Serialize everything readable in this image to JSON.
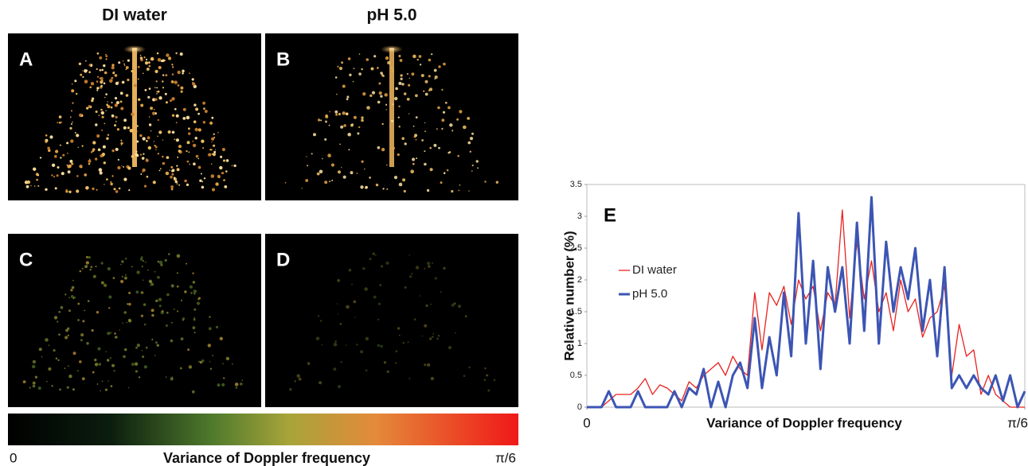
{
  "panels": {
    "headers": [
      "DI water",
      "pH 5.0"
    ],
    "labels": [
      "A",
      "B",
      "C",
      "D"
    ]
  },
  "colorbar": {
    "min_label": "0",
    "title": "Variance of Doppler frequency",
    "max_label": "π/6"
  },
  "chart_data": {
    "type": "line",
    "panel_label": "E",
    "xlabel": "Variance of Doppler frequency",
    "ylabel": "Relative number (%)",
    "x": [
      0,
      0.0087,
      0.0175,
      0.0262,
      0.0349,
      0.0436,
      0.0524,
      0.0611,
      0.0698,
      0.0785,
      0.0873,
      0.096,
      0.1047,
      0.1134,
      0.1222,
      0.1309,
      0.1396,
      0.1484,
      0.1571,
      0.1658,
      0.1745,
      0.1833,
      0.192,
      0.2007,
      0.2094,
      0.2182,
      0.2269,
      0.2356,
      0.2443,
      0.2531,
      0.2618,
      0.2705,
      0.2793,
      0.288,
      0.2967,
      0.3054,
      0.3142,
      0.3229,
      0.3316,
      0.3403,
      0.3491,
      0.3578,
      0.3665,
      0.3752,
      0.384,
      0.3927,
      0.4014,
      0.4102,
      0.4189,
      0.4276,
      0.4363,
      0.4451,
      0.4538,
      0.4625,
      0.4712,
      0.48,
      0.4887,
      0.4974,
      0.5061,
      0.5149,
      0.5236
    ],
    "series": [
      {
        "name": "DI water",
        "color": "#e8231f",
        "width": 1.3,
        "values": [
          0,
          0,
          0,
          0.1,
          0.2,
          0.2,
          0.2,
          0.3,
          0.45,
          0.2,
          0.35,
          0.3,
          0.2,
          0.1,
          0.4,
          0.3,
          0.5,
          0.6,
          0.7,
          0.5,
          0.8,
          0.6,
          0.5,
          1.8,
          0.9,
          1.8,
          1.6,
          1.9,
          1.3,
          2.0,
          1.7,
          1.9,
          1.2,
          1.8,
          1.6,
          3.1,
          1.4,
          2.6,
          1.7,
          2.3,
          1.5,
          1.8,
          1.2,
          2.0,
          1.5,
          1.7,
          1.1,
          1.4,
          1.5,
          1.9,
          0.5,
          1.3,
          0.8,
          0.9,
          0.2,
          0.5,
          0.2,
          0.1,
          0,
          0,
          0
        ]
      },
      {
        "name": "pH 5.0",
        "color": "#3c55b4",
        "width": 3,
        "values": [
          0,
          0,
          0,
          0.25,
          0,
          0,
          0,
          0.25,
          0,
          0,
          0,
          0,
          0.25,
          0,
          0.3,
          0.2,
          0.6,
          0,
          0.4,
          0,
          0.5,
          0.7,
          0.3,
          1.4,
          0.3,
          1.1,
          0.5,
          1.8,
          0.8,
          3.05,
          1.0,
          2.3,
          0.6,
          2.2,
          1.5,
          2.2,
          1.0,
          2.9,
          1.2,
          3.3,
          1.0,
          2.6,
          1.5,
          2.2,
          1.7,
          2.5,
          1.2,
          2.0,
          0.8,
          2.2,
          0.3,
          0.5,
          0.3,
          0.5,
          0.3,
          0.2,
          0.5,
          0.1,
          0.5,
          0,
          0.25
        ]
      }
    ],
    "xlim": [
      0,
      0.5236
    ],
    "xticks": [
      0,
      {
        "value": 0.5236,
        "label": "π/6"
      }
    ],
    "ylim": [
      0,
      3.5
    ],
    "yticks": [
      0,
      0.5,
      1,
      1.5,
      2,
      2.5,
      3,
      3.5
    ],
    "grid": false,
    "legend": "left"
  }
}
